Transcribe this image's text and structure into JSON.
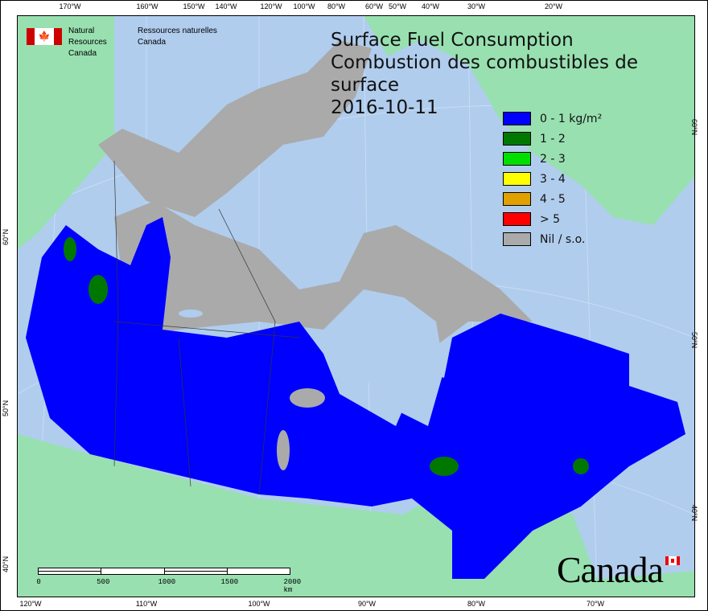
{
  "logo": {
    "en_line1": "Natural Resources",
    "en_line2": "Canada",
    "fr_line1": "Ressources naturelles",
    "fr_line2": "Canada"
  },
  "title": {
    "line1": "Surface Fuel Consumption",
    "line2": "Combustion des combustibles de surface",
    "date": "2016-10-11"
  },
  "legend": [
    {
      "label": "0 - 1 kg/m²",
      "color": "#0000ff"
    },
    {
      "label": "1 - 2",
      "color": "#007800"
    },
    {
      "label": "2 - 3",
      "color": "#00e000"
    },
    {
      "label": "3 - 4",
      "color": "#ffff00"
    },
    {
      "label": "4 - 5",
      "color": "#e0a000"
    },
    {
      "label": "> 5",
      "color": "#ff0000"
    },
    {
      "label": "Nil / s.o.",
      "color": "#aaaaaa"
    }
  ],
  "colors": {
    "ocean": "#b0cdee",
    "land_foreign": "#98e0b0",
    "nodata": "#aaaaaa",
    "fuel_low": "#0000ff"
  },
  "axes": {
    "top": [
      "170°W",
      "160°W",
      "150°W",
      "140°W",
      "120°W",
      "100°W",
      "80°W",
      "60°W",
      "50°W",
      "40°W",
      "30°W",
      "20°W"
    ],
    "bottom": [
      "120°W",
      "110°W",
      "100°W",
      "90°W",
      "80°W",
      "70°W"
    ],
    "left": [
      "60°N",
      "50°N",
      "40°N"
    ],
    "right": [
      "60°N",
      "50°N",
      "40°N"
    ]
  },
  "scale_bar": {
    "labels": [
      "0",
      "500",
      "1000",
      "1500",
      "2000 km"
    ]
  },
  "wordmark": "Canada"
}
